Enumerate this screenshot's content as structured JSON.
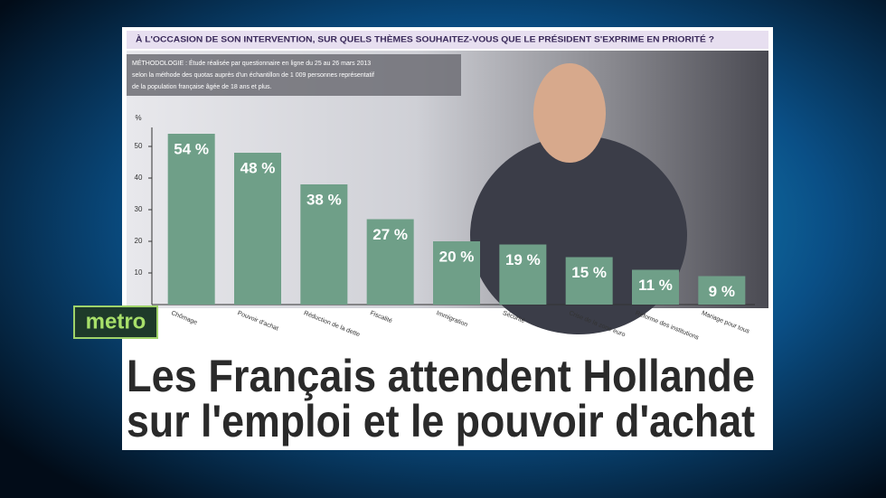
{
  "question": "À L'OCCASION DE SON INTERVENTION, SUR QUELS THÈMES SOUHAITEZ-VOUS QUE LE PRÉSIDENT S'EXPRIME EN PRIORITÉ ?",
  "methodology": [
    "MÉTHODOLOGIE : Étude réalisée par questionnaire en ligne du 25 au 26 mars 2013",
    "selon la méthode des quotas auprès d'un échantillon de 1 009 personnes représentatif",
    "de la population française âgée de 18 ans et plus."
  ],
  "logo": "metro",
  "headline": [
    "Les Français attendent Hollande",
    "sur l'emploi et le pouvoir d'achat"
  ],
  "chart_data": {
    "type": "bar",
    "y_label": "%",
    "categories": [
      "Chômage",
      "Pouvoir d'achat",
      "Réduction de la dette",
      "Fiscalité",
      "Immigration",
      "Sécurité",
      "Crise de la zone euro",
      "Réforme des institutions",
      "Mariage pour tous"
    ],
    "values": [
      54,
      48,
      38,
      27,
      20,
      19,
      15,
      11,
      9
    ],
    "value_labels": [
      "54 %",
      "48 %",
      "38 %",
      "27 %",
      "20 %",
      "19 %",
      "15 %",
      "11 %",
      "9 %"
    ],
    "color": "#6f9f88",
    "ylim": [
      0,
      56
    ],
    "yticks": [
      10,
      20,
      30,
      40,
      50
    ]
  }
}
